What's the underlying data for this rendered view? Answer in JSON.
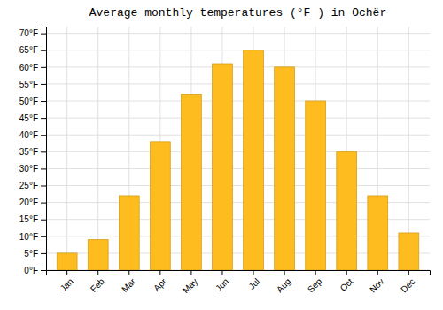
{
  "chart_data": {
    "type": "bar",
    "title": "Average monthly temperatures (°F ) in Ochër",
    "categories": [
      "Jan",
      "Feb",
      "Mar",
      "Apr",
      "May",
      "Jun",
      "Jul",
      "Aug",
      "Sep",
      "Oct",
      "Nov",
      "Dec"
    ],
    "values": [
      5,
      9,
      22,
      38,
      52,
      61,
      65,
      60,
      50,
      35,
      22,
      11
    ],
    "color": "#FFBC1F",
    "ylim": [
      0,
      72
    ],
    "yticks": [
      {
        "value": 0,
        "label": "0°F"
      },
      {
        "value": 5,
        "label": "5°F"
      },
      {
        "value": 10,
        "label": "10°F"
      },
      {
        "value": 15,
        "label": "15°F"
      },
      {
        "value": 20,
        "label": "20°F"
      },
      {
        "value": 25,
        "label": "25°F"
      },
      {
        "value": 30,
        "label": "30°F"
      },
      {
        "value": 35,
        "label": "35°F"
      },
      {
        "value": 40,
        "label": "40°F"
      },
      {
        "value": 45,
        "label": "45°F"
      },
      {
        "value": 50,
        "label": "50°F"
      },
      {
        "value": 55,
        "label": "55°F"
      },
      {
        "value": 60,
        "label": "60°F"
      },
      {
        "value": 65,
        "label": "65°F"
      },
      {
        "value": 70,
        "label": "70°F"
      }
    ],
    "grid": true
  }
}
